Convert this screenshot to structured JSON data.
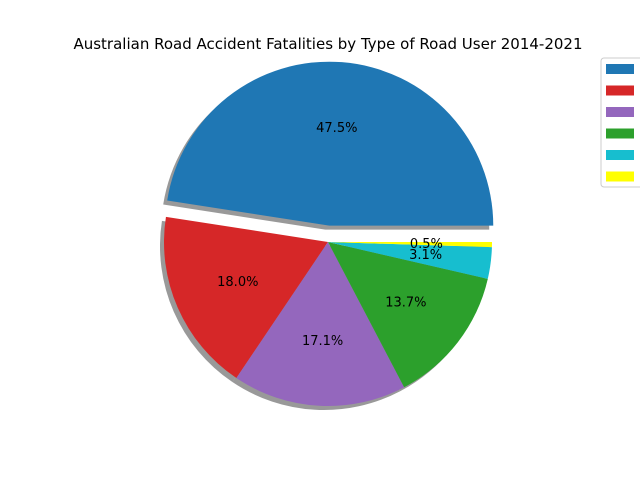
{
  "chart_data": {
    "type": "pie",
    "title": "Australian Road Accident Fatalities by Type of Road User 2014-2021",
    "slices": [
      {
        "name": "",
        "percent": 47.5,
        "label": "47.5%",
        "color": "#1f77b4",
        "explode": true
      },
      {
        "name": "",
        "percent": 18.0,
        "label": "18.0%",
        "color": "#d62728",
        "explode": false
      },
      {
        "name": "",
        "percent": 17.1,
        "label": "17.1%",
        "color": "#9467bd",
        "explode": false
      },
      {
        "name": "",
        "percent": 13.7,
        "label": "13.7%",
        "color": "#2ca02c",
        "explode": false
      },
      {
        "name": "",
        "percent": 3.1,
        "label": "3.1%",
        "color": "#17becf",
        "explode": false
      },
      {
        "name": "",
        "percent": 0.5,
        "label": "0.5%",
        "color": "#ffff00",
        "explode": false
      }
    ],
    "start_angle_deg": 0,
    "direction": "counterclockwise",
    "shadow": true,
    "legend": {
      "placement": "upper-right, partially outside axes",
      "entries_visible_text": false
    }
  }
}
